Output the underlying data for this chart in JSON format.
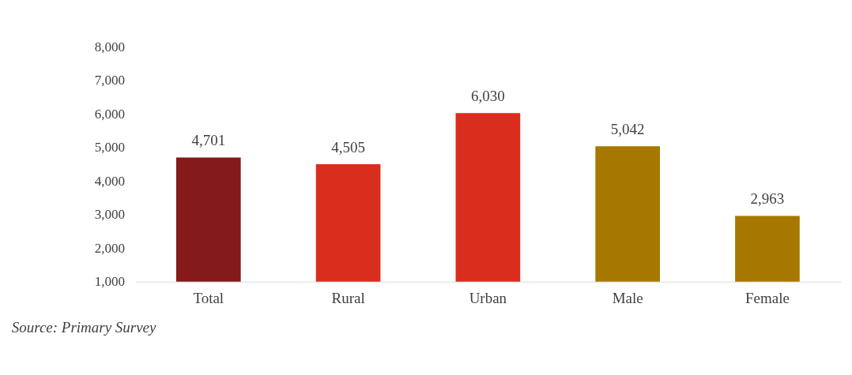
{
  "chart_data": {
    "type": "bar",
    "categories": [
      "Total",
      "Rural",
      "Urban",
      "Male",
      "Female"
    ],
    "values": [
      4701,
      4505,
      6030,
      5042,
      2963
    ],
    "value_labels": [
      "4,701",
      "4,505",
      "6,030",
      "5,042",
      "2,963"
    ],
    "colors": [
      "#841a1a",
      "#d92e1e",
      "#d92e1e",
      "#a67800",
      "#a67800"
    ],
    "ylim": [
      1000,
      8000
    ],
    "yticks": [
      {
        "value": 1000,
        "label": "1,000"
      },
      {
        "value": 2000,
        "label": "2,000"
      },
      {
        "value": 3000,
        "label": "3,000"
      },
      {
        "value": 4000,
        "label": "4,000"
      },
      {
        "value": 5000,
        "label": "5,000"
      },
      {
        "value": 6000,
        "label": "6,000"
      },
      {
        "value": 7000,
        "label": "7,000"
      },
      {
        "value": 8000,
        "label": "8,000"
      }
    ],
    "grid": false,
    "annotations": [
      "Source: Primary Survey"
    ]
  }
}
